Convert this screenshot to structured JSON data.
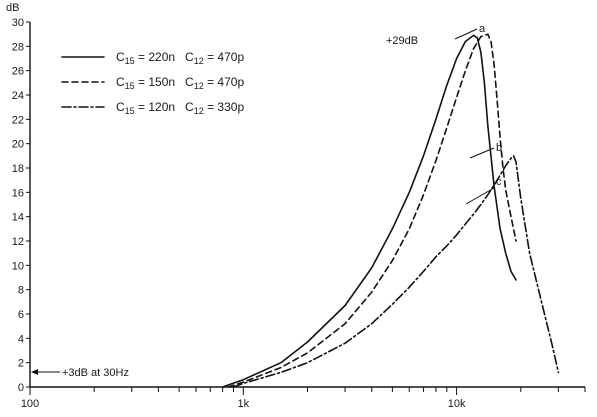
{
  "chart_data": {
    "type": "line",
    "ylabel": "dB",
    "x_scale": "log",
    "xlim": [
      100,
      40000
    ],
    "ylim": [
      0,
      30
    ],
    "yticks": [
      0,
      2,
      4,
      6,
      8,
      10,
      12,
      14,
      16,
      18,
      20,
      22,
      24,
      26,
      28,
      30
    ],
    "xtick_labels": [
      {
        "value": 100,
        "label": "100"
      },
      {
        "value": 1000,
        "label": "1k"
      },
      {
        "value": 10000,
        "label": "10k"
      }
    ],
    "series": [
      {
        "name": "C15 = 220n   C12 = 470p",
        "legend_main_1": "C",
        "legend_sub_1": "15",
        "legend_main_2": " = 220n   C",
        "legend_sub_2": "12",
        "legend_main_3": " = 470p",
        "dash": "solid",
        "x": [
          800,
          1000,
          1500,
          2000,
          3000,
          4000,
          5000,
          6000,
          7000,
          8000,
          9000,
          10000,
          11000,
          12000,
          12500,
          13000,
          13500,
          14000,
          15000,
          16000,
          17000,
          18000,
          19000
        ],
        "y": [
          0,
          0.6,
          2,
          3.7,
          6.7,
          9.8,
          13,
          16,
          19,
          22,
          24.8,
          27,
          28.4,
          28.9,
          28.7,
          27.5,
          25,
          21.5,
          16.5,
          13,
          11,
          9.5,
          8.8
        ]
      },
      {
        "name": "C15 = 150n   C12 = 470p",
        "legend_main_1": "C",
        "legend_sub_1": "15",
        "legend_main_2": " = 150n   C",
        "legend_sub_2": "12",
        "legend_main_3": " = 470p",
        "dash": "dashed",
        "x": [
          850,
          1000,
          1500,
          2000,
          3000,
          4000,
          5000,
          6000,
          7000,
          8000,
          9000,
          10000,
          11000,
          12000,
          13000,
          14000,
          14500,
          15000,
          15500,
          16000,
          16500,
          17000,
          18000,
          19000
        ],
        "y": [
          0,
          0.4,
          1.6,
          2.8,
          5.2,
          7.8,
          10.4,
          13,
          15.8,
          18.6,
          21.3,
          23.8,
          26,
          27.8,
          28.8,
          29,
          28.4,
          26.5,
          23.5,
          20.5,
          18,
          16.2,
          14,
          12
        ]
      },
      {
        "name": "C15 = 120n   C12 = 330p",
        "legend_main_1": "C",
        "legend_sub_1": "15",
        "legend_main_2": " = 120n   C",
        "legend_sub_2": "12",
        "legend_main_3": " = 330p",
        "dash": "dash-dot",
        "x": [
          900,
          1000,
          1500,
          2000,
          3000,
          4000,
          5000,
          6000,
          7000,
          8000,
          9000,
          10000,
          11000,
          12000,
          13000,
          14000,
          15000,
          16000,
          17000,
          18000,
          18500,
          19000,
          20000,
          22000,
          25000,
          28000,
          30000
        ],
        "y": [
          0,
          0.3,
          1.2,
          2,
          3.6,
          5.2,
          6.8,
          8.2,
          9.5,
          10.7,
          11.6,
          12.5,
          13.4,
          14.2,
          15,
          15.8,
          16.6,
          17.4,
          18.2,
          18.8,
          19,
          18.5,
          15.5,
          11,
          7,
          3.5,
          1.2
        ]
      }
    ],
    "annotations": {
      "peak_label": "+29dB",
      "low_label": "+3dB at 30Hz",
      "marker_a": "a",
      "marker_b": "b",
      "marker_c": "c"
    },
    "legend_position": "top-left",
    "grid": false
  }
}
